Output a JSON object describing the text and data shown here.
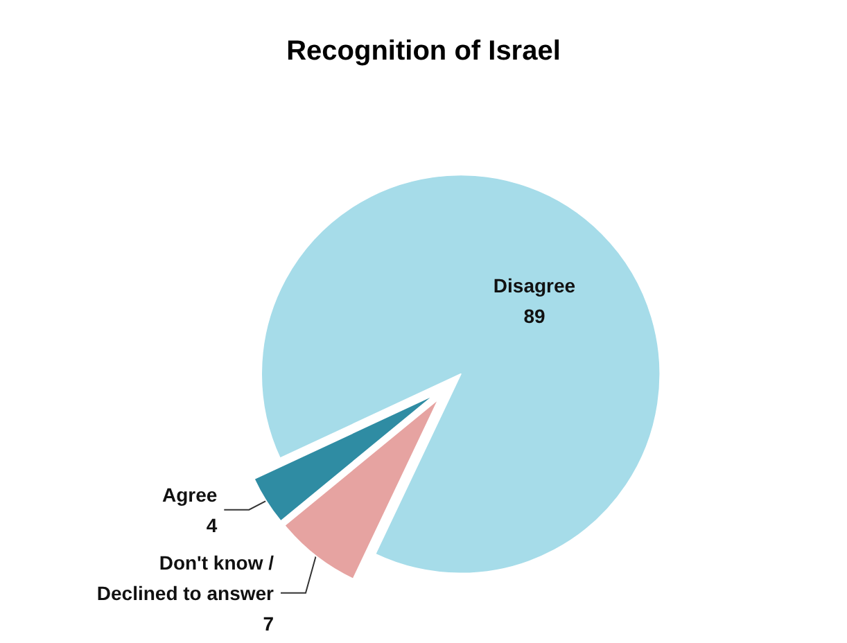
{
  "chart_data": {
    "type": "pie",
    "title": "Recognition of Israel",
    "categories": [
      "Disagree",
      "Don't know /\nDeclined to answer",
      "Agree"
    ],
    "values": [
      89,
      7,
      4
    ],
    "colors": [
      "#a6dce9",
      "#e6a3a1",
      "#2f8ca3"
    ],
    "data_labels": true
  }
}
